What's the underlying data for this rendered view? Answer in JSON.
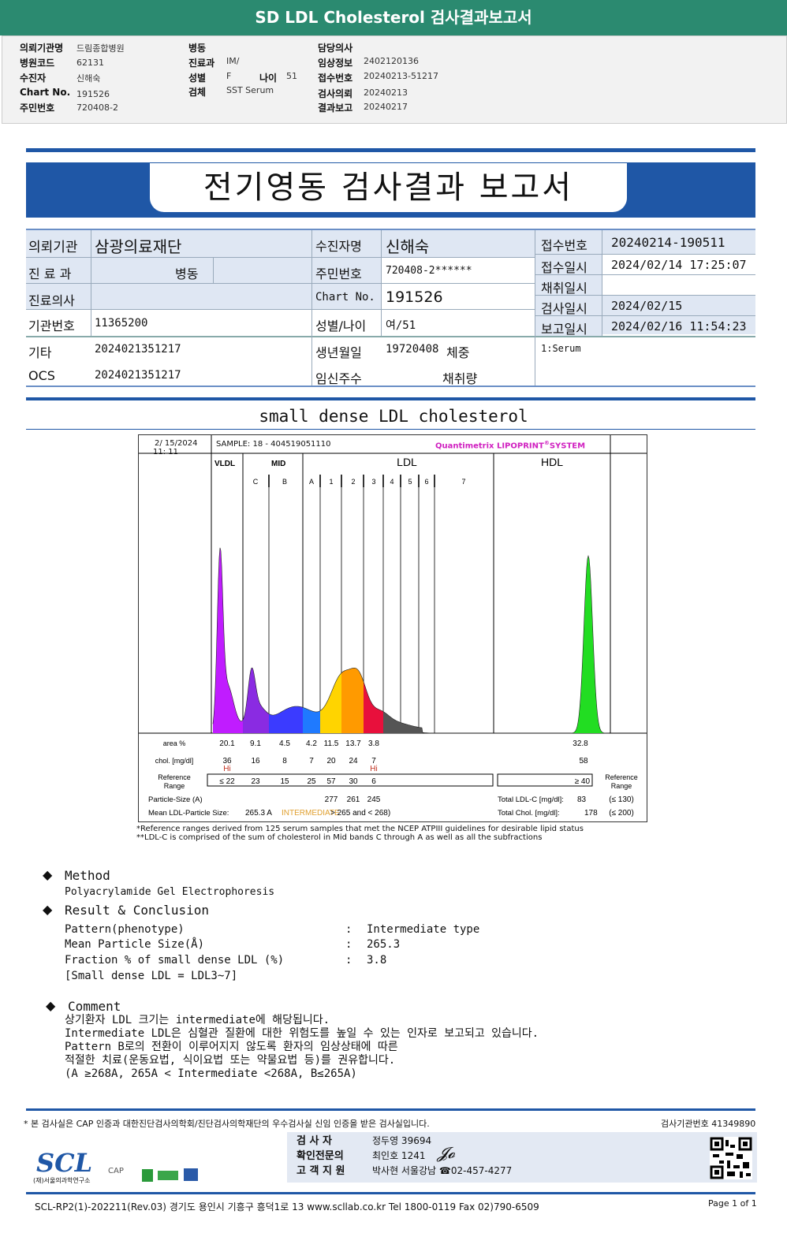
{
  "title_bar": "SD LDL Cholesterol 검사결과보고서",
  "info": {
    "col1": [
      [
        "의뢰기관명",
        "드림종합병원"
      ],
      [
        "병원코드",
        "62131"
      ],
      [
        "수진자",
        "신해숙"
      ],
      [
        "Chart No.",
        "191526"
      ],
      [
        "주민번호",
        "720408-2"
      ]
    ],
    "col2": [
      [
        "병동",
        ""
      ],
      [
        "진료과",
        "IM/"
      ],
      [
        "성별",
        "F"
      ],
      [
        "검체",
        "SST Serum"
      ]
    ],
    "age_label": "나이",
    "age": "51",
    "col3": [
      [
        "담당의사",
        ""
      ],
      [
        "임상정보",
        "2402120136"
      ],
      [
        "접수번호",
        "20240213-51217"
      ],
      [
        "검사의뢰",
        "20240213"
      ],
      [
        "결과보고",
        "20240217"
      ]
    ]
  },
  "banner": "전기영동 검사결과 보고서",
  "patient": {
    "institution_label": "의뢰기관",
    "institution": "삼광의료재단",
    "dept_label": "진 료 과",
    "ward_label": "병동",
    "doctor_label": "진료의사",
    "inst_no_label": "기관번호",
    "inst_no": "11365200",
    "etc_label": "기타",
    "etc": "2024021351217",
    "ocs_label": "OCS",
    "ocs": "2024021351217",
    "name_label": "수진자명",
    "name": "신해숙",
    "rrn_label": "주민번호",
    "rrn": "720408-2******",
    "chart_label": "Chart No.",
    "chart": "191526",
    "sexage_label": "성별/나이",
    "sexage": "여/51",
    "dob_label": "생년월일",
    "dob": "19720408",
    "weight_label": "체중",
    "preg_label": "임신주수",
    "volume_label": "채취량",
    "receipt_no_label": "접수번호",
    "receipt_no": "20240214-190511",
    "receipt_time_label": "접수일시",
    "receipt_time": "2024/02/14 17:25:07",
    "collect_label": "채취일시",
    "test_label": "검사일시",
    "test_time": "2024/02/15",
    "report_label": "보고일시",
    "report_time": "2024/02/16 11:54:23",
    "specimen": "1:Serum"
  },
  "section_title": "small dense LDL cholesterol",
  "lipoprint": {
    "date": "2/ 15/2024",
    "time": "11: 11",
    "sample": "SAMPLE:   18 - 404519051110",
    "brand": "Quantimetrix LIPOPRINT",
    "brand2": "SYSTEM",
    "groups": [
      "VLDL",
      "MID",
      "LDL",
      "HDL"
    ],
    "bands": [
      "C",
      "B",
      "A",
      "1",
      "2",
      "3",
      "4",
      "5",
      "6",
      "7"
    ],
    "colors": {
      "vldl": "#c01cff",
      "c": "#8a2be2",
      "b": "#3b3bff",
      "a": "#1f7aff",
      "ldl1": "#ffd400",
      "ldl2": "#ff9a00",
      "ldl3": "#e8103c",
      "ldl4": "#555555",
      "hdl": "#22dd22"
    },
    "area_label": "area %",
    "area": [
      "20.1",
      "9.1",
      "4.5",
      "4.2",
      "11.5",
      "13.7",
      "3.8"
    ],
    "hdl_area": "32.8",
    "chol_label": "chol. [mg/dl]",
    "chol": [
      "36",
      "16",
      "8",
      "7",
      "20",
      "24",
      "7"
    ],
    "hdl_chol": "58",
    "flags": [
      "Hi",
      "",
      "",
      "",
      "",
      "",
      "Hi"
    ],
    "ref_label": "Reference Range",
    "ref": [
      "≤ 22",
      "23",
      "15",
      "25",
      "57",
      "30",
      "6"
    ],
    "hdl_ref": "≥  40",
    "psize_label": "Particle-Size (A)",
    "psize": [
      "277",
      "261",
      "245"
    ],
    "mean_label": "Mean LDL-Particle Size:",
    "mean_value": "265.3 A",
    "mean_type": "INTERMEDIATE",
    "mean_range": "> 265 and < 268)",
    "total_ldl_label": "Total LDL-C [mg/dl]:",
    "total_ldl": "83",
    "total_ldl_ref": "(≤ 130)",
    "total_chol_label": "Total Chol. [mg/dl]:",
    "total_chol": "178",
    "total_chol_ref": "(≤ 200)",
    "note1": "*Reference ranges derived from 125 serum samples that met the NCEP ATPIII guidelines for desirable lipid status",
    "note2": "**LDL-C is comprised of the sum of cholesterol in Mid bands C through A as well as all the subfractions"
  },
  "method": {
    "heading": "Method",
    "text": "Polyacrylamide Gel Electrophoresis"
  },
  "result": {
    "heading": "Result & Conclusion",
    "rows": [
      [
        "Pattern(phenotype)",
        "Intermediate type"
      ],
      [
        "Mean Particle Size(Å)",
        "265.3"
      ],
      [
        "Fraction % of small dense LDL (%)",
        "3.8"
      ]
    ],
    "note": "[Small dense LDL = LDL3~7]"
  },
  "comment": {
    "heading": "Comment",
    "lines": [
      "상기환자 LDL 크기는 intermediate에 해당됩니다.",
      "Intermediate LDL은 심혈관 질환에 대한 위험도를 높일 수 있는 인자로 보고되고 있습니다.",
      "Pattern B로의 전환이 이루어지지 않도록 환자의 임상상태에 따른",
      "적절한 치료(운동요법, 식이요법 또는 약물요법 등)를 권유합니다.",
      "(A ≥268A, 265A < Intermediate <268A, B≤265A)"
    ]
  },
  "footer": {
    "cert": "* 본 검사실은 CAP 인증과 대한진단검사의학회/진단검사의학재단의 우수검사실 신임 인증을 받은 검사실입니다.",
    "lab_no": "검사기관번호 41349890",
    "staff": [
      [
        "검  사  자",
        "정두영 39694"
      ],
      [
        "확인전문의",
        "최인호 1241"
      ],
      [
        "고 객 지 원",
        "박사현 서울강남 ☎02-457-4277"
      ]
    ],
    "logo": "SCL",
    "logo_sub": "(재)서울의과학연구소",
    "cap": "CAP",
    "address": "SCL-RP2(1)-202211(Rev.03)  경기도 용인시 기흥구 흥덕1로 13  www.scllab.co.kr   Tel 1800-0119    Fax 02)790-6509",
    "page": "Page 1 of 1"
  }
}
